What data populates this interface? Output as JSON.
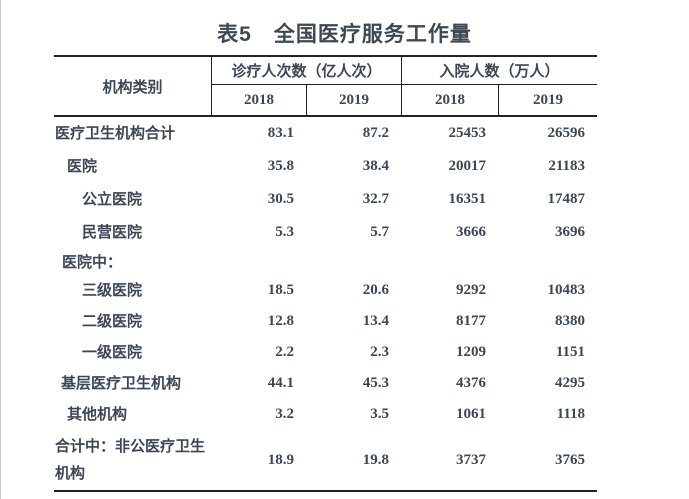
{
  "title": "表5　全国医疗服务工作量",
  "table": {
    "row_header_label": "机构类别",
    "col_groups": [
      {
        "label": "诊疗人次数（亿人次）",
        "years": [
          "2018",
          "2019"
        ]
      },
      {
        "label": "入院人数（万人）",
        "years": [
          "2018",
          "2019"
        ]
      }
    ],
    "rows": [
      {
        "label": "医疗卫生机构合计",
        "values": [
          "83.1",
          "87.2",
          "25453",
          "26596"
        ]
      },
      {
        "label": "医院",
        "values": [
          "35.8",
          "38.4",
          "20017",
          "21183"
        ]
      },
      {
        "label": "公立医院",
        "values": [
          "30.5",
          "32.7",
          "16351",
          "17487"
        ]
      },
      {
        "label": "民营医院",
        "values": [
          "5.3",
          "5.7",
          "3666",
          "3696"
        ]
      },
      {
        "label": "医院中：",
        "values": [
          "",
          "",
          "",
          ""
        ]
      },
      {
        "label": "三级医院",
        "values": [
          "18.5",
          "20.6",
          "9292",
          "10483"
        ]
      },
      {
        "label": "二级医院",
        "values": [
          "12.8",
          "13.4",
          "8177",
          "8380"
        ]
      },
      {
        "label": "一级医院",
        "values": [
          "2.2",
          "2.3",
          "1209",
          "1151"
        ]
      },
      {
        "label": "基层医疗卫生机构",
        "values": [
          "44.1",
          "45.3",
          "4376",
          "4295"
        ]
      },
      {
        "label": "其他机构",
        "values": [
          "3.2",
          "3.5",
          "1061",
          "1118"
        ]
      },
      {
        "label": "合计中：非公医疗卫生机构",
        "values": [
          "18.9",
          "19.8",
          "3737",
          "3765"
        ]
      }
    ]
  },
  "colors": {
    "text": "#3d4654",
    "title_text": "#3f4750",
    "rule_line": "#222222",
    "page_edge": "#c9c9c9",
    "background": "#ffffff"
  }
}
